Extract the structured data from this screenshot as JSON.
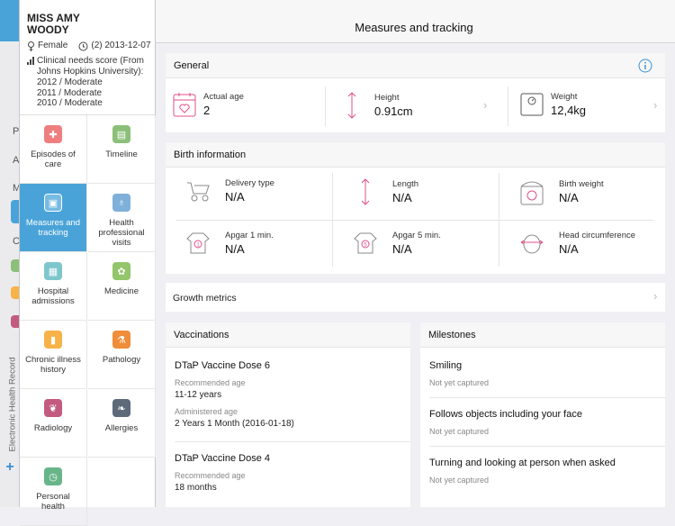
{
  "sidebar_strip": {
    "letters": [
      "P",
      "A",
      "M",
      "C"
    ],
    "tab_label": "Electronic Health Record"
  },
  "patient": {
    "name": "MISS AMY WOODY",
    "sex": "Female",
    "birth": "(2) 2013-12-07",
    "clinical_score_title": "Clinical needs score (From Johns Hopkins University):",
    "clinical_scores": [
      "2012 / Moderate",
      "2011 / Moderate",
      "2010 / Moderate"
    ]
  },
  "menu": [
    {
      "label": "Episodes of care",
      "icon": "episodes-icon",
      "color": "#ef7f7f"
    },
    {
      "label": "Timeline",
      "icon": "timeline-icon",
      "color": "#8cc07a"
    },
    {
      "label": "Measures and tracking",
      "icon": "measures-icon",
      "color": "#4aa3d8"
    },
    {
      "label": "Health professional visits",
      "icon": "visits-icon",
      "color": "#7fb0da"
    },
    {
      "label": "Hospital admissions",
      "icon": "hospital-icon",
      "color": "#7dc6cc"
    },
    {
      "label": "Medicine",
      "icon": "medicine-icon",
      "color": "#93c56a"
    },
    {
      "label": "Chronic illness history",
      "icon": "chronic-icon",
      "color": "#f7b248"
    },
    {
      "label": "Pathology",
      "icon": "pathology-icon",
      "color": "#f08d3a"
    },
    {
      "label": "Radiology",
      "icon": "radiology-icon",
      "color": "#c25b7f"
    },
    {
      "label": "Allergies",
      "icon": "allergies-icon",
      "color": "#5e6a7a"
    },
    {
      "label": "Personal health",
      "icon": "personal-health-icon",
      "color": "#68b58a"
    }
  ],
  "header": {
    "title": "Measures and tracking"
  },
  "general": {
    "title": "General",
    "actual_age_label": "Actual age",
    "actual_age_value": "2",
    "height_label": "Height",
    "height_value": "0.91cm",
    "weight_label": "Weight",
    "weight_value": "12,4kg"
  },
  "birth": {
    "title": "Birth information",
    "items": [
      {
        "label": "Delivery type",
        "value": "N/A"
      },
      {
        "label": "Length",
        "value": "N/A"
      },
      {
        "label": "Birth weight",
        "value": "N/A"
      },
      {
        "label": "Apgar 1 min.",
        "value": "N/A"
      },
      {
        "label": "Apgar 5 min.",
        "value": "N/A"
      },
      {
        "label": "Head circumference",
        "value": "N/A"
      }
    ]
  },
  "growth": {
    "label": "Growth metrics"
  },
  "vaccinations": {
    "title": "Vaccinations",
    "recommended_label": "Recommended age",
    "administered_label": "Administered age",
    "items": [
      {
        "name": "DTaP Vaccine Dose 6",
        "recommended": "11-12 years",
        "administered": "2 Years 1 Month (2016-01-18)"
      },
      {
        "name": "DTaP Vaccine Dose 4",
        "recommended": "18 months"
      }
    ]
  },
  "milestones": {
    "title": "Milestones",
    "items": [
      {
        "name": "Smiling",
        "status": "Not yet captured"
      },
      {
        "name": "Follows objects including your face",
        "status": "Not yet captured"
      },
      {
        "name": "Turning and looking at person when asked",
        "status": "Not yet captured"
      }
    ]
  },
  "colors": {
    "accent": "#4aa3d8",
    "icon_pink": "#e0508a",
    "info_blue": "#3a8fd0"
  }
}
